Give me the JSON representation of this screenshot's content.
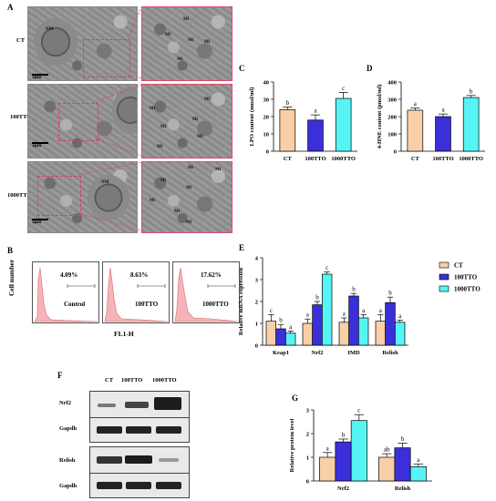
{
  "panels": {
    "A": "A",
    "B": "B",
    "C": "C",
    "D": "D",
    "E": "E",
    "F": "F",
    "G": "G"
  },
  "em": {
    "rows": [
      "CT",
      "100TTO",
      "1000TTO"
    ],
    "scale": "2μm",
    "labels": {
      "nm": "NM",
      "mi": "Mi"
    }
  },
  "flow": {
    "ylabel": "Cell number",
    "xlabel": "FL1-H",
    "histograms": [
      {
        "percent": "4.09%",
        "name": "Control"
      },
      {
        "percent": "8.63%",
        "name": "100TTO"
      },
      {
        "percent": "17.62%",
        "name": "1000TTO"
      }
    ]
  },
  "blot": {
    "columns": [
      "CT",
      "100TTO",
      "1000TTO"
    ],
    "rows": [
      "Nrf2",
      "Gapdh",
      "Relish",
      "Gapdh"
    ]
  },
  "colors": {
    "CT": "#f9cfa8",
    "100TTO": "#3a2fd9",
    "1000TTO": "#56f4f4",
    "em_box": "#e03a5c"
  },
  "chart_data": [
    {
      "id": "C",
      "type": "bar",
      "categories": [
        "CT",
        "100TTO",
        "1000TTO"
      ],
      "values": [
        24,
        18,
        30.5
      ],
      "errors": [
        1.5,
        3,
        3.5
      ],
      "letters": [
        "b",
        "a",
        "c"
      ],
      "ylabel": "LPO content (nmol/ml)",
      "ylim": [
        0,
        40
      ],
      "yticks": [
        0,
        10,
        20,
        30,
        40
      ]
    },
    {
      "id": "D",
      "type": "bar",
      "categories": [
        "CT",
        "100TTO",
        "1000TTO"
      ],
      "values": [
        237,
        200,
        310
      ],
      "errors": [
        12,
        15,
        12
      ],
      "letters": [
        "a",
        "a",
        "b"
      ],
      "ylabel": "4-HNE content (pmol/ml)",
      "ylim": [
        0,
        400
      ],
      "yticks": [
        0,
        100,
        200,
        300,
        400
      ]
    },
    {
      "id": "E",
      "type": "bar",
      "categories": [
        "Keap1",
        "Nrf2",
        "IMD",
        "Relish"
      ],
      "series": [
        {
          "name": "CT",
          "values": [
            1.1,
            1.0,
            1.05,
            1.1
          ],
          "errors": [
            0.3,
            0.2,
            0.2,
            0.3
          ],
          "letters": [
            "c",
            "a",
            "a",
            "a"
          ]
        },
        {
          "name": "100TTO",
          "values": [
            0.75,
            1.85,
            2.25,
            1.95
          ],
          "errors": [
            0.2,
            0.15,
            0.12,
            0.25
          ],
          "letters": [
            "b",
            "b",
            "b",
            "b"
          ]
        },
        {
          "name": "1000TTO",
          "values": [
            0.55,
            3.25,
            1.25,
            1.05
          ],
          "errors": [
            0.1,
            0.1,
            0.15,
            0.1
          ],
          "letters": [
            "a",
            "c",
            "a",
            "a"
          ]
        }
      ],
      "ylabel": "Relative mRNA expression",
      "ylim": [
        0,
        4
      ],
      "yticks": [
        0,
        1,
        2,
        3,
        4
      ],
      "legend": "right"
    },
    {
      "id": "G",
      "type": "bar",
      "categories": [
        "Nrf2",
        "Relish"
      ],
      "series": [
        {
          "name": "CT",
          "values": [
            1.0,
            1.0
          ],
          "errors": [
            0.2,
            0.15
          ],
          "letters": [
            "a",
            "ab"
          ]
        },
        {
          "name": "100TTO",
          "values": [
            1.65,
            1.4
          ],
          "errors": [
            0.12,
            0.2
          ],
          "letters": [
            "b",
            "b"
          ]
        },
        {
          "name": "1000TTO",
          "values": [
            2.55,
            0.6
          ],
          "errors": [
            0.25,
            0.12
          ],
          "letters": [
            "c",
            "a"
          ]
        }
      ],
      "ylabel": "Relative protein level",
      "ylim": [
        0,
        3
      ],
      "yticks": [
        0,
        1,
        2,
        3
      ]
    }
  ]
}
